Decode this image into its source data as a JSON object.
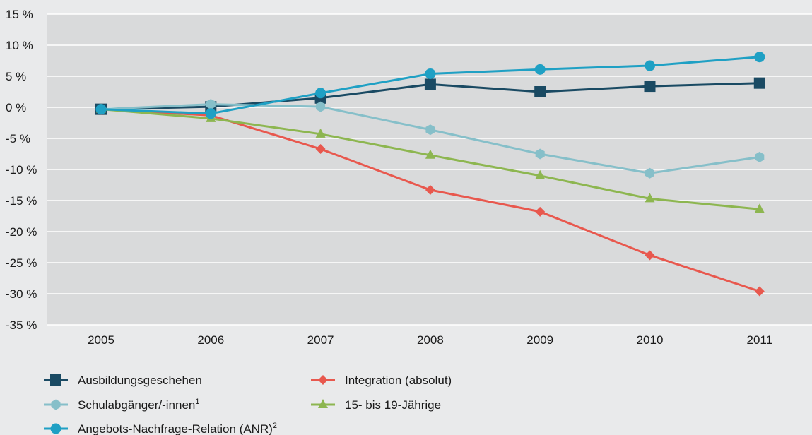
{
  "chart_data": {
    "type": "line",
    "title": "",
    "xlabel": "",
    "ylabel": "",
    "x": [
      "2005",
      "2006",
      "2007",
      "2008",
      "2009",
      "2010",
      "2011"
    ],
    "ylim": [
      -35,
      15
    ],
    "yticks": [
      15,
      10,
      5,
      0,
      -5,
      -10,
      -15,
      -20,
      -25,
      -30,
      -35
    ],
    "ytick_labels": [
      "15 %",
      "10 %",
      "5 %",
      "0 %",
      "-5 %",
      "-10 %",
      "-15 %",
      "-20 %",
      "-25 %",
      "-30 %",
      "-35 %"
    ],
    "grid": true,
    "legend_position": "bottom",
    "series": [
      {
        "name": "Ausbildungsgeschehen",
        "marker": "square",
        "color": "#1a4a63",
        "values": [
          -0.3,
          0.1,
          1.5,
          3.7,
          2.5,
          3.4,
          3.9
        ]
      },
      {
        "name": "Integration (absolut)",
        "marker": "diamond",
        "color": "#e8584e",
        "values": [
          -0.3,
          -1.3,
          -6.7,
          -13.3,
          -16.8,
          -23.8,
          -29.6
        ]
      },
      {
        "name": "Schulabgänger/-innen",
        "sup": "1",
        "marker": "hexagon",
        "color": "#86bfc9",
        "values": [
          -0.3,
          0.5,
          0.1,
          -3.6,
          -7.5,
          -10.6,
          -8.0
        ]
      },
      {
        "name": "15- bis 19-Jährige",
        "marker": "triangle",
        "color": "#8db650",
        "values": [
          -0.3,
          -1.8,
          -4.3,
          -7.7,
          -11.0,
          -14.7,
          -16.4
        ]
      },
      {
        "name": "Angebots-Nachfrage-Relation (ANR)",
        "sup": "2",
        "marker": "circle",
        "color": "#1fa0c4",
        "values": [
          -0.3,
          -1.0,
          2.3,
          5.4,
          6.1,
          6.7,
          8.1
        ]
      }
    ]
  }
}
